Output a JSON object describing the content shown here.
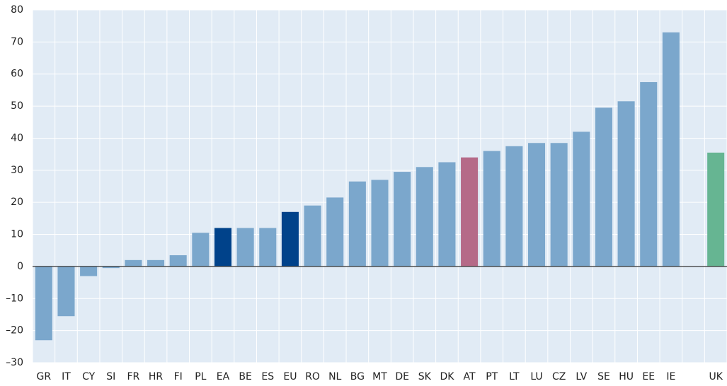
{
  "chart_data": {
    "type": "bar",
    "categories": [
      "GR",
      "IT",
      "CY",
      "SI",
      "FR",
      "HR",
      "FI",
      "PL",
      "EA",
      "BE",
      "ES",
      "EU",
      "RO",
      "NL",
      "BG",
      "MT",
      "DE",
      "SK",
      "DK",
      "AT",
      "PT",
      "LT",
      "LU",
      "CZ",
      "LV",
      "SE",
      "HU",
      "EE",
      "IE",
      null,
      "UK"
    ],
    "values": [
      -23,
      -15.5,
      -3,
      -0.5,
      2,
      2,
      3.5,
      10.5,
      12,
      12,
      12,
      17,
      19,
      21.5,
      26.5,
      27,
      29.5,
      31,
      32.5,
      34,
      36,
      37.5,
      38.5,
      38.5,
      42,
      49.5,
      51.5,
      57.5,
      73,
      null,
      35.5
    ],
    "colors": [
      "#7ba7cc",
      "#7ba7cc",
      "#7ba7cc",
      "#7ba7cc",
      "#7ba7cc",
      "#7ba7cc",
      "#7ba7cc",
      "#7ba7cc",
      "#00428a",
      "#7ba7cc",
      "#7ba7cc",
      "#00428a",
      "#7ba7cc",
      "#7ba7cc",
      "#7ba7cc",
      "#7ba7cc",
      "#7ba7cc",
      "#7ba7cc",
      "#7ba7cc",
      "#b56a88",
      "#7ba7cc",
      "#7ba7cc",
      "#7ba7cc",
      "#7ba7cc",
      "#7ba7cc",
      "#7ba7cc",
      "#7ba7cc",
      "#7ba7cc",
      "#7ba7cc",
      "#7ba7cc",
      "#66b592"
    ],
    "ylim": [
      -30,
      80
    ],
    "yticks": [
      {
        "value": -30,
        "label": "–30"
      },
      {
        "value": -20,
        "label": "–20"
      },
      {
        "value": -10,
        "label": "–10"
      },
      0,
      10,
      20,
      30,
      40,
      50,
      60,
      70,
      80
    ],
    "grid": true
  }
}
